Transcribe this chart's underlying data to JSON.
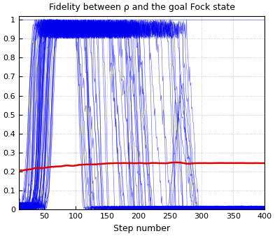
{
  "title": "Fidelity between ρ and the goal Fock state",
  "xlabel": "Step number",
  "ylabel": "",
  "xlim": [
    10,
    400
  ],
  "ylim": [
    0,
    1.02
  ],
  "yticks": [
    0,
    0.1,
    0.2,
    0.3,
    0.4,
    0.5,
    0.6,
    0.7,
    0.8,
    0.9,
    1
  ],
  "xticks": [
    50,
    100,
    150,
    200,
    250,
    300,
    350,
    400
  ],
  "background_color": "#ffffff",
  "blue_color": "#0000ee",
  "red_color": "#dd0000",
  "n_steps": 400,
  "n_trajectories": 60,
  "grid_color": "#bbbbbb",
  "figsize": [
    3.93,
    3.37
  ],
  "dpi": 100
}
